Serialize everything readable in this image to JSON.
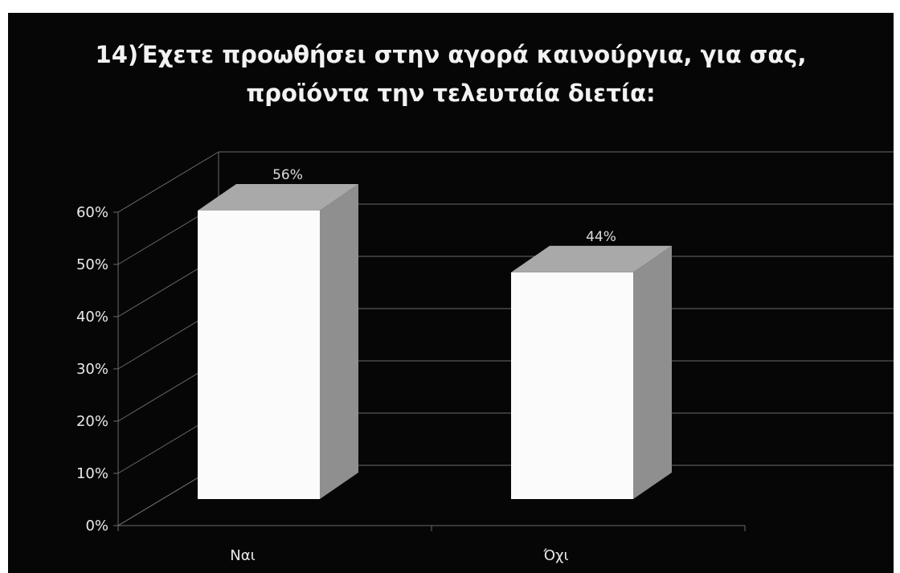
{
  "chart_data": {
    "type": "bar",
    "title_line1": "14)Έχετε προωθήσει στην αγορά καινούργια, για σας,",
    "title_line2": "προϊόντα την τελευταία διετία:",
    "categories": [
      "Ναι",
      "Όχι"
    ],
    "values": [
      56,
      44
    ],
    "data_labels": [
      "56%",
      "44%"
    ],
    "y_ticks": [
      "0%",
      "10%",
      "20%",
      "30%",
      "40%",
      "50%",
      "60%"
    ],
    "ylim": [
      0,
      60
    ],
    "grid": true,
    "style": "3d-column"
  },
  "colors": {
    "background": "#060606",
    "bar_front": "#fbfbfb",
    "bar_top": "#a9a9a9",
    "bar_side": "#8f8f8f",
    "gridline": "#6a6a6a",
    "text": "#eaeaea"
  }
}
